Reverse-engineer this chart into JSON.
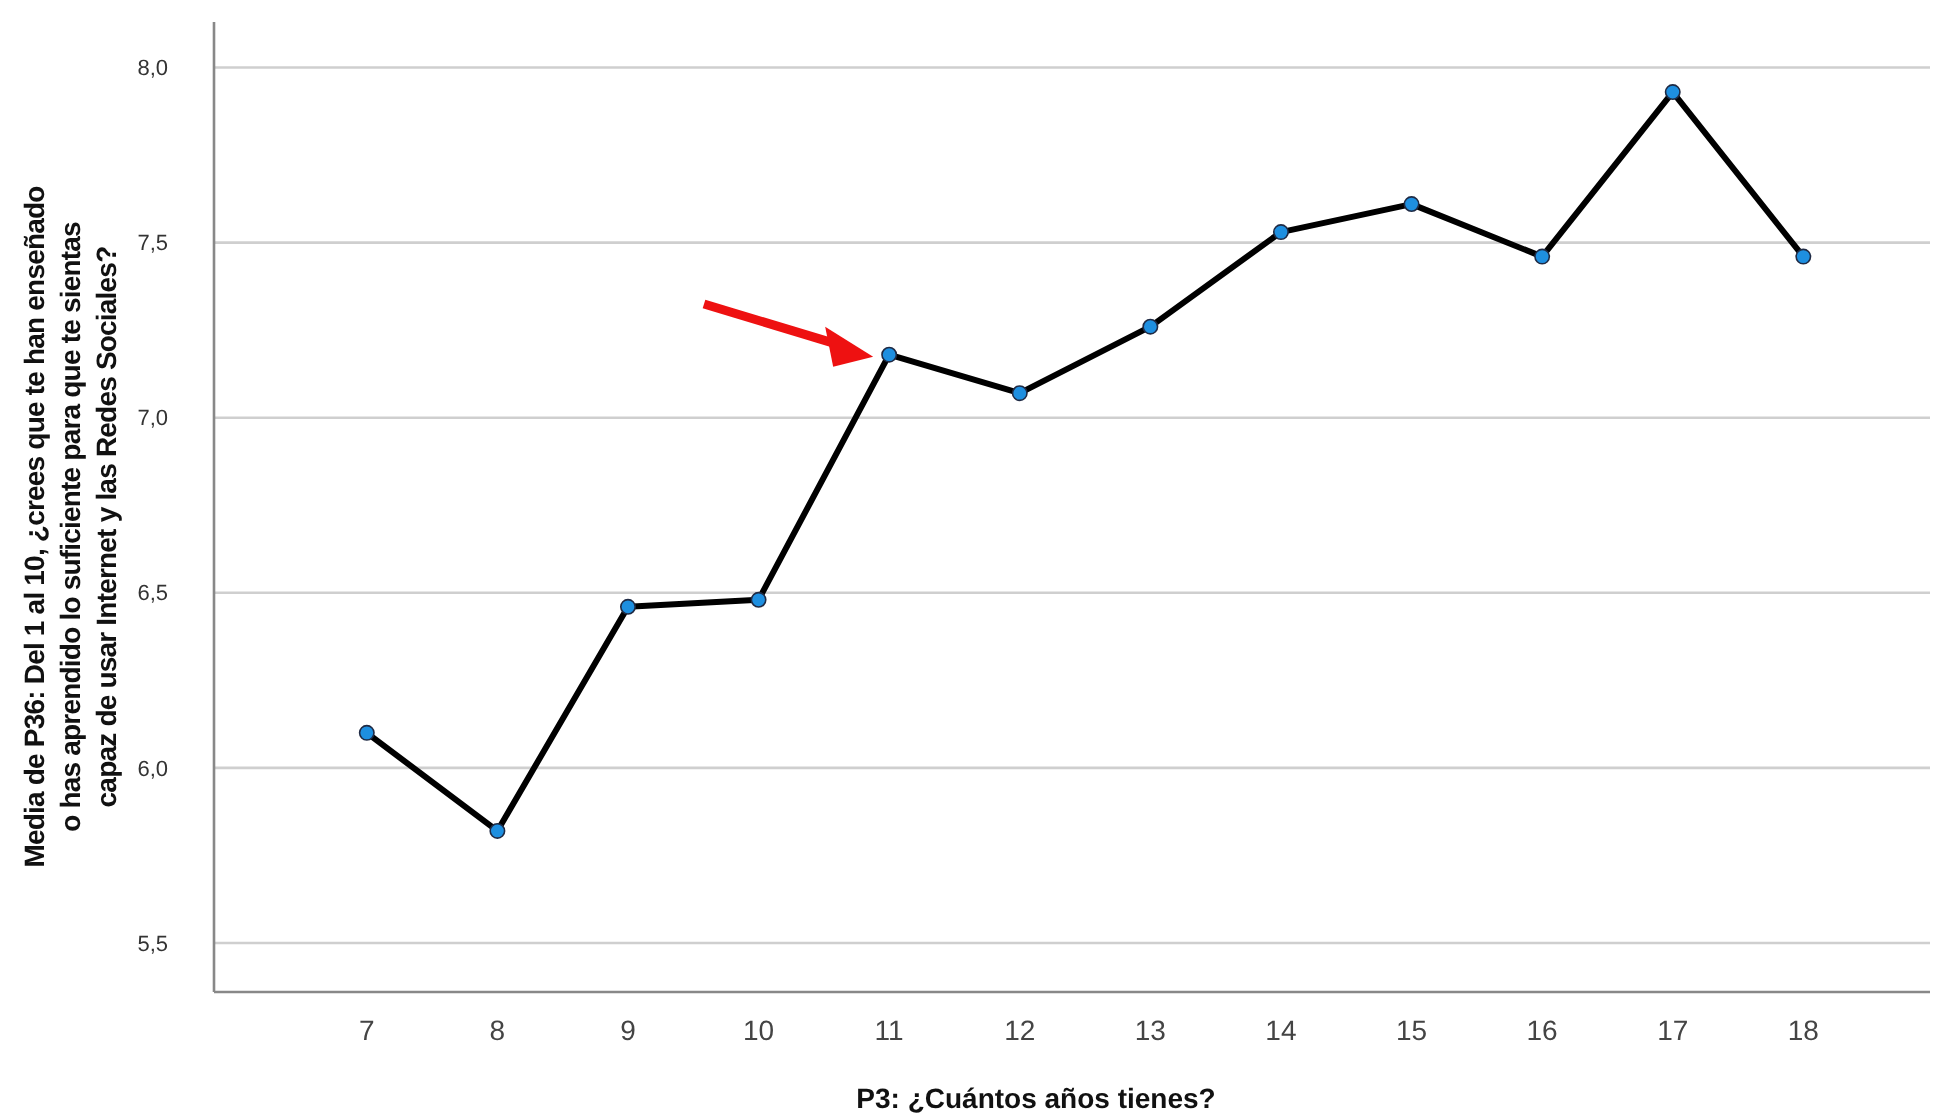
{
  "chart_data": {
    "type": "line",
    "xlabel": "P3: ¿Cuántos años tienes?",
    "ylabel": "Media de P36: Del 1 al 10, ¿crees que te han enseñado\no has aprendido lo suficiente para que te sientas\ncapaz de usar Internet y las Redes Sociales?",
    "categories": [
      "7",
      "8",
      "9",
      "10",
      "11",
      "12",
      "13",
      "14",
      "15",
      "16",
      "17",
      "18"
    ],
    "series": [
      {
        "color": "#000000",
        "values": [
          6.1,
          5.82,
          6.46,
          6.48,
          7.18,
          7.07,
          7.26,
          7.53,
          7.61,
          7.46,
          7.93,
          7.46
        ]
      }
    ],
    "ylim": [
      5.36,
      8.13
    ],
    "yticks": [
      {
        "value": 5.5,
        "label": "5,5"
      },
      {
        "value": 6.0,
        "label": "6,0"
      },
      {
        "value": 6.5,
        "label": "6,5"
      },
      {
        "value": 7.0,
        "label": "7,0"
      },
      {
        "value": 7.5,
        "label": "7,5"
      },
      {
        "value": 8.0,
        "label": "8,0"
      }
    ],
    "grid": "y",
    "marker": "circle",
    "line_style": "solid"
  }
}
